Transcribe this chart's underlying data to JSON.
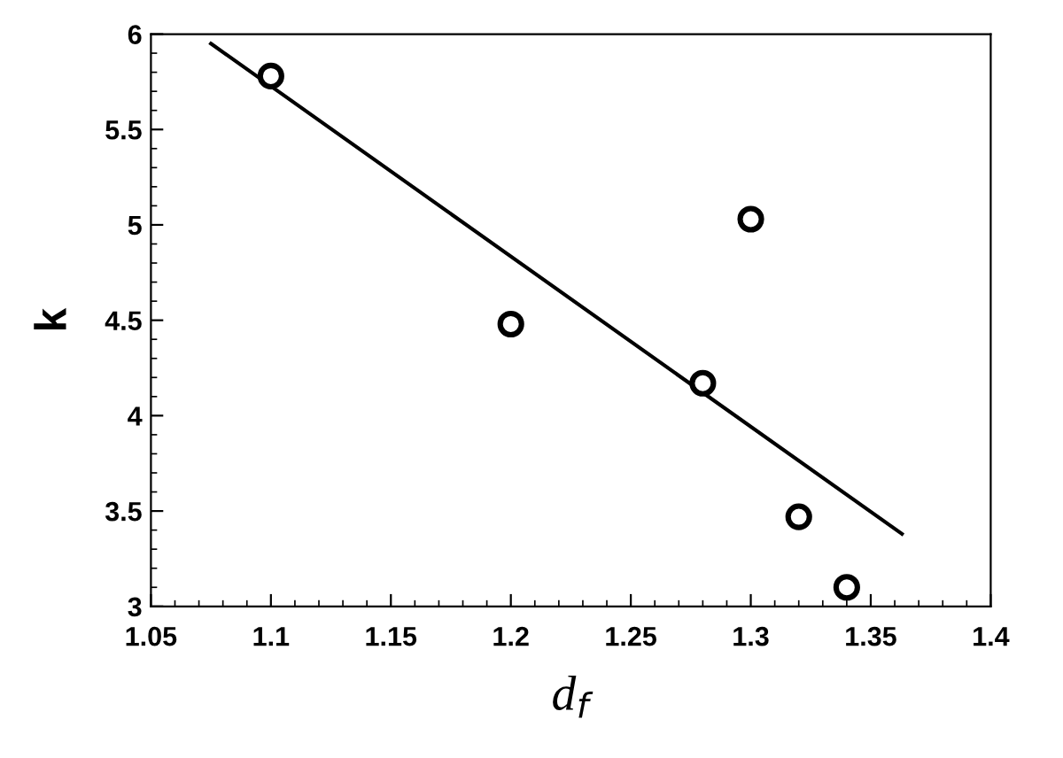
{
  "chart_data": {
    "type": "scatter",
    "xlabel": "d$_{f}$",
    "ylabel": "k",
    "xlim": [
      1.05,
      1.4
    ],
    "xticks": [
      1.05,
      1.1,
      1.15,
      1.2,
      1.25,
      1.3,
      1.35,
      1.4
    ],
    "ylim": [
      3,
      6
    ],
    "yticks": [
      3,
      3.5,
      4,
      4.5,
      5,
      5.5,
      6
    ],
    "grid": false,
    "legend": false,
    "series": [
      {
        "marker": "circle",
        "color": "#000000",
        "x": [
          1.1,
          1.2,
          1.28,
          1.3,
          1.32,
          1.34
        ],
        "values": [
          5.78,
          4.48,
          4.17,
          5.03,
          3.47,
          3.1
        ]
      },
      {
        "type": "line",
        "color": "#000000",
        "x": [
          1.075,
          1.363
        ],
        "values": [
          5.95,
          3.38
        ],
        "line_style": "solid"
      }
    ]
  }
}
